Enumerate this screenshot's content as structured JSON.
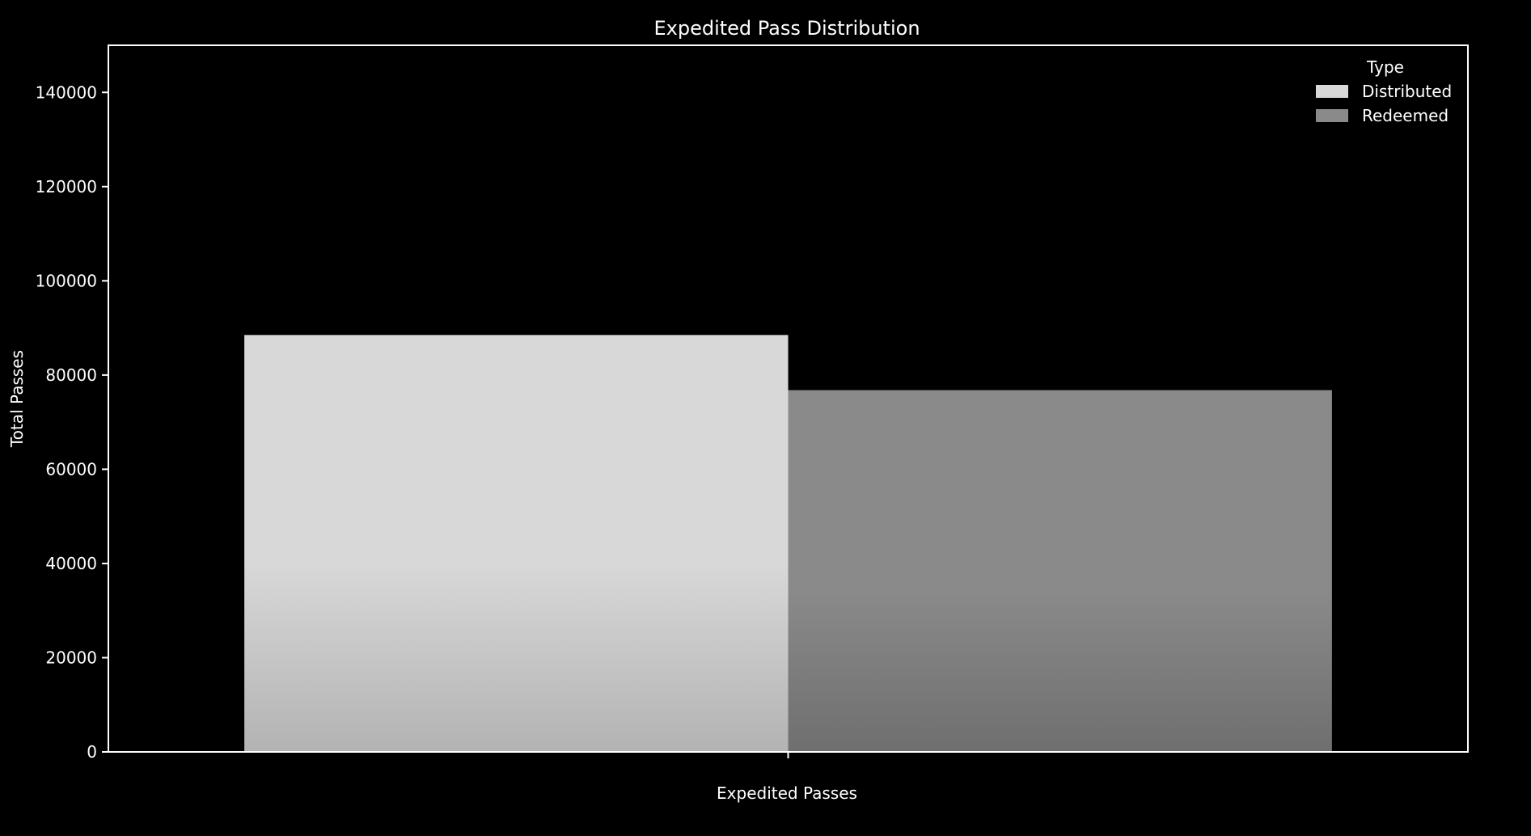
{
  "chart_data": {
    "type": "bar",
    "title": "Expedited Pass Distribution",
    "xlabel": "Expedited Passes",
    "ylabel": "Total Passes",
    "ylim": [
      0,
      150000
    ],
    "yticks": [
      "0",
      "20000",
      "40000",
      "60000",
      "80000",
      "100000",
      "120000",
      "140000"
    ],
    "categories": [
      ""
    ],
    "legend": {
      "title": "Type",
      "placement": "top-right"
    },
    "grid": false,
    "series": [
      {
        "name": "Distributed",
        "values": [
          88500
        ],
        "color": "#d8d8d8",
        "color_bottom": "#b3b3b3"
      },
      {
        "name": "Redeemed",
        "values": [
          76800
        ],
        "color": "#8a8a8a",
        "color_bottom": "#6f6f6f"
      }
    ]
  }
}
